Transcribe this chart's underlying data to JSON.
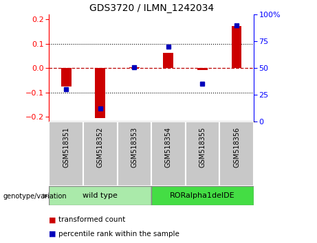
{
  "title": "GDS3720 / ILMN_1242034",
  "samples": [
    "GSM518351",
    "GSM518352",
    "GSM518353",
    "GSM518354",
    "GSM518355",
    "GSM518356"
  ],
  "transformed_counts": [
    -0.075,
    -0.205,
    0.002,
    0.062,
    -0.008,
    0.172
  ],
  "percentile_ranks": [
    30,
    12,
    51,
    70,
    35,
    90
  ],
  "groups": [
    {
      "label": "wild type",
      "indices": [
        0,
        1,
        2
      ],
      "color": "#AAEAAA"
    },
    {
      "label": "RORalpha1delDE",
      "indices": [
        3,
        4,
        5
      ],
      "color": "#44DD44"
    }
  ],
  "ylim_left": [
    -0.22,
    0.22
  ],
  "ylim_right": [
    0,
    100
  ],
  "yticks_left": [
    -0.2,
    -0.1,
    0.0,
    0.1,
    0.2
  ],
  "yticks_right": [
    0,
    25,
    50,
    75,
    100
  ],
  "bar_color": "#CC0000",
  "dot_color": "#0000BB",
  "zero_line_color": "#BB0000",
  "background_color": "#ffffff",
  "plot_bg_color": "#ffffff",
  "sample_label_bg": "#C8C8C8",
  "label_transformed": "transformed count",
  "label_percentile": "percentile rank within the sample",
  "genotype_label": "genotype/variation",
  "title_fontsize": 10,
  "tick_fontsize": 8,
  "sample_fontsize": 7,
  "group_fontsize": 8,
  "legend_fontsize": 7.5
}
